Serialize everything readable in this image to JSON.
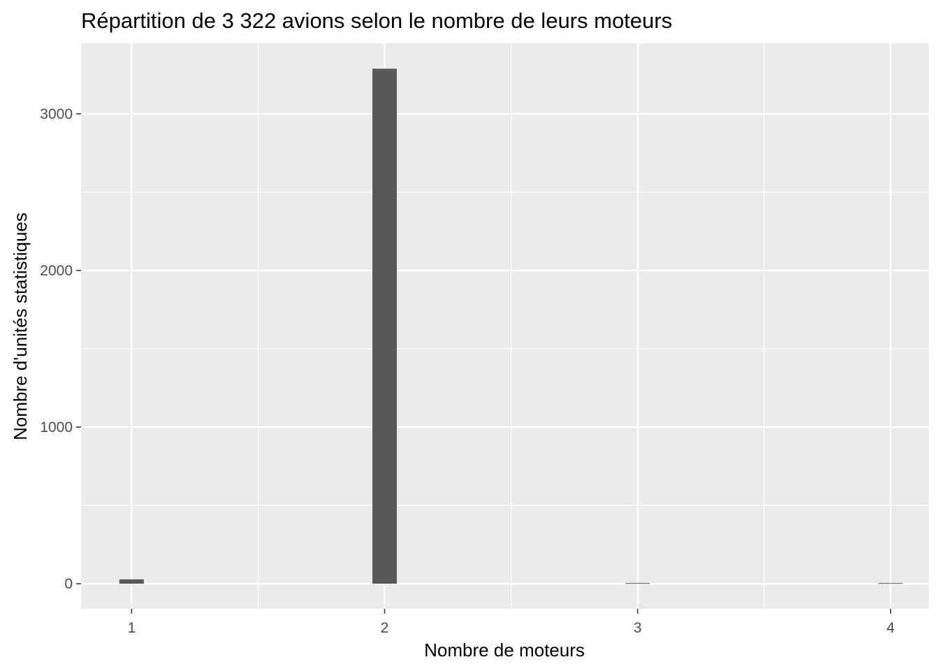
{
  "chart_data": {
    "type": "bar",
    "title": "Répartition de 3 322 avions selon le nombre de leurs moteurs",
    "xlabel": "Nombre de moteurs",
    "ylabel": "Nombre d'unités statistiques",
    "categories": [
      1,
      2,
      3,
      4
    ],
    "values": [
      28,
      3288,
      3,
      3
    ],
    "x_ticks": [
      "1",
      "2",
      "3",
      "4"
    ],
    "y_ticks": [
      0,
      1000,
      2000,
      3000
    ],
    "xlim": [
      0.8,
      4.15
    ],
    "ylim": [
      -160,
      3450
    ],
    "grid": true,
    "colors": {
      "panel_background": "#EBEBEB",
      "grid": "#FFFFFF",
      "bar": "#595959",
      "tick_text": "#4D4D4D",
      "tick_mark": "#333333"
    }
  }
}
